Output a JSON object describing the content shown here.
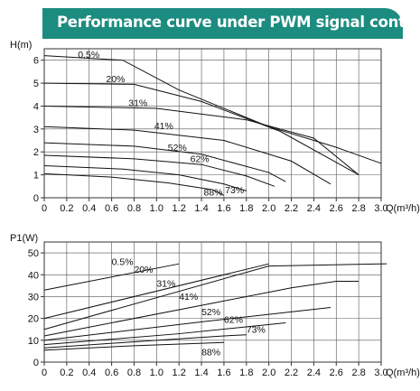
{
  "banner": {
    "title": "Performance curve under PWM signal control",
    "color": "#1d8c80"
  },
  "chart_data": [
    {
      "type": "line",
      "title": "",
      "xlabel": "Q(m³/h)",
      "ylabel": "H(m)",
      "xlim": [
        0,
        3.0
      ],
      "ylim": [
        0,
        6.5
      ],
      "xticks": [
        "0",
        "0.2",
        "0.4",
        "0.6",
        "0.8",
        "1.0",
        "1.2",
        "1.4",
        "1.6",
        "1.8",
        "2.0",
        "2.2",
        "2.4",
        "2.6",
        "2.8",
        "3.0"
      ],
      "yticks": [
        "0",
        "1",
        "2",
        "3",
        "4",
        "5",
        "6"
      ],
      "grid": true,
      "labels": [
        {
          "text": "0.5%",
          "x": 0.3,
          "y": 6.1
        },
        {
          "text": "20%",
          "x": 0.55,
          "y": 5.05
        },
        {
          "text": "31%",
          "x": 0.75,
          "y": 4.0
        },
        {
          "text": "41%",
          "x": 0.98,
          "y": 3.0
        },
        {
          "text": "52%",
          "x": 1.1,
          "y": 2.05
        },
        {
          "text": "62%",
          "x": 1.3,
          "y": 1.55
        },
        {
          "text": "88%",
          "x": 1.42,
          "y": 0.1
        },
        {
          "text": "73%",
          "x": 1.61,
          "y": 0.2
        }
      ],
      "series": [
        {
          "x": [
            0,
            0.7,
            1.2,
            2.0,
            2.6,
            3.0
          ],
          "y": [
            6.2,
            6.0,
            4.7,
            3.1,
            2.2,
            1.5
          ]
        },
        {
          "x": [
            0,
            0.8,
            1.4,
            2.1,
            2.8
          ],
          "y": [
            5.0,
            4.95,
            4.2,
            2.9,
            1.0
          ]
        },
        {
          "x": [
            0,
            1.0,
            1.8,
            2.4,
            2.8
          ],
          "y": [
            4.0,
            3.9,
            3.4,
            2.6,
            1.0
          ]
        },
        {
          "x": [
            0,
            0.8,
            1.6,
            2.2,
            2.55
          ],
          "y": [
            3.1,
            2.95,
            2.5,
            1.6,
            0.6
          ]
        },
        {
          "x": [
            0,
            0.8,
            1.4,
            2.0,
            2.15
          ],
          "y": [
            2.4,
            2.25,
            1.9,
            1.1,
            0.7
          ]
        },
        {
          "x": [
            0,
            0.8,
            1.4,
            1.8,
            2.05
          ],
          "y": [
            1.85,
            1.7,
            1.45,
            0.95,
            0.5
          ]
        },
        {
          "x": [
            0,
            0.7,
            1.2,
            1.6,
            1.8
          ],
          "y": [
            1.4,
            1.25,
            1.0,
            0.6,
            0.3
          ]
        },
        {
          "x": [
            0,
            0.6,
            1.1,
            1.5,
            1.6
          ],
          "y": [
            1.05,
            0.9,
            0.65,
            0.35,
            0.1
          ]
        }
      ]
    },
    {
      "type": "line",
      "title": "",
      "xlabel": "Q(m³/h)",
      "ylabel": "P1(W)",
      "xlim": [
        0,
        3.0
      ],
      "ylim": [
        0,
        55
      ],
      "xticks": [
        "0",
        "0.2",
        "0.4",
        "0.6",
        "0.8",
        "1.0",
        "1.2",
        "1.4",
        "1.6",
        "1.8",
        "2.0",
        "2.2",
        "2.4",
        "2.6",
        "2.8",
        "3.0"
      ],
      "yticks": [
        "0",
        "10",
        "20",
        "30",
        "40",
        "50"
      ],
      "grid": true,
      "labels": [
        {
          "text": "0.5%",
          "x": 0.6,
          "y": 44.5
        },
        {
          "text": "20%",
          "x": 0.8,
          "y": 41.0
        },
        {
          "text": "31%",
          "x": 1.0,
          "y": 34.5
        },
        {
          "text": "41%",
          "x": 1.2,
          "y": 28.5
        },
        {
          "text": "52%",
          "x": 1.4,
          "y": 21.5
        },
        {
          "text": "62%",
          "x": 1.6,
          "y": 18.0
        },
        {
          "text": "73%",
          "x": 1.8,
          "y": 13.5
        },
        {
          "text": "88%",
          "x": 1.4,
          "y": 3.0
        }
      ],
      "series": [
        {
          "x": [
            0,
            1.2
          ],
          "y": [
            33,
            45
          ]
        },
        {
          "x": [
            0,
            2.0
          ],
          "y": [
            20,
            45
          ]
        },
        {
          "x": [
            0,
            2.0,
            3.05
          ],
          "y": [
            15,
            44,
            45
          ]
        },
        {
          "x": [
            0,
            1.5,
            2.2,
            2.6,
            2.8
          ],
          "y": [
            12,
            27,
            34,
            37,
            37
          ]
        },
        {
          "x": [
            0,
            1.5,
            2.55
          ],
          "y": [
            10,
            19,
            25
          ]
        },
        {
          "x": [
            0,
            1.2,
            2.15
          ],
          "y": [
            8,
            13,
            18
          ]
        },
        {
          "x": [
            0,
            1.0,
            1.6,
            1.8
          ],
          "y": [
            6.5,
            10,
            12,
            12.5
          ]
        },
        {
          "x": [
            0,
            0.8,
            1.6
          ],
          "y": [
            5.5,
            7.5,
            9
          ]
        }
      ]
    }
  ]
}
